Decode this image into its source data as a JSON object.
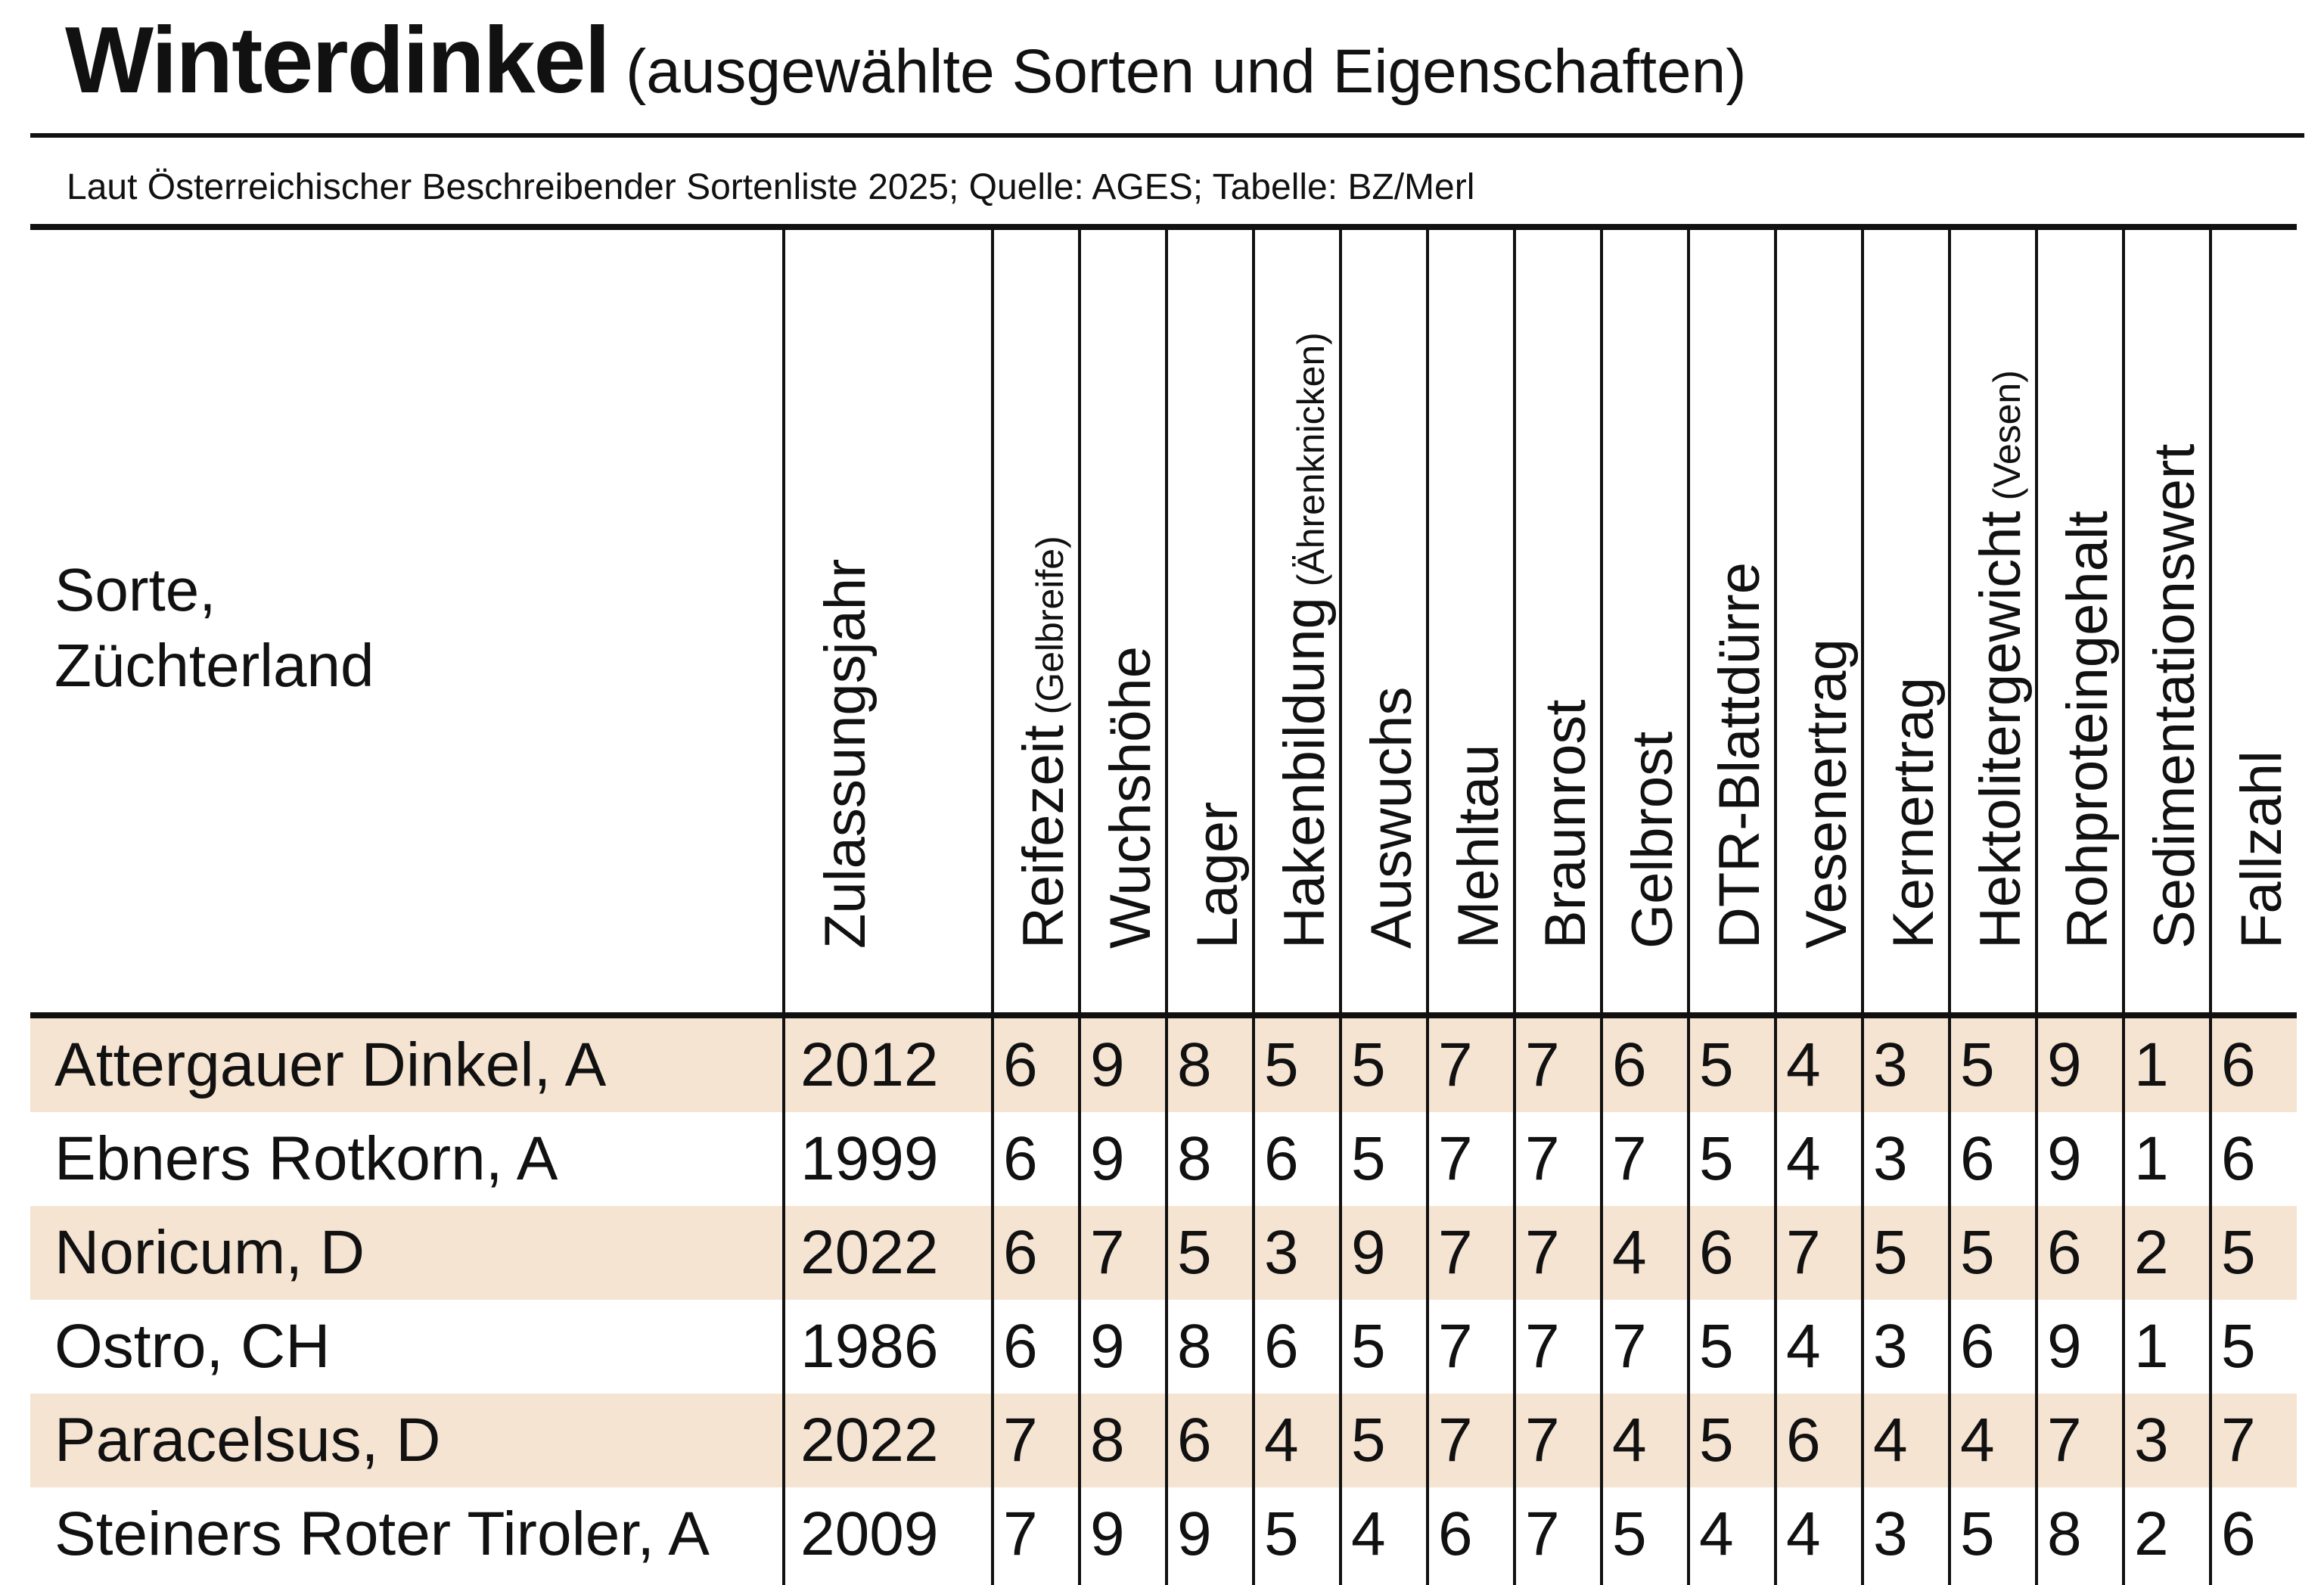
{
  "title": "Winterdinkel",
  "subtitle": "(ausgewählte Sorten und Eigenschaften)",
  "source": "Laut Österreichischer Beschreibender Sortenliste 2025; Quelle: AGES; Tabelle: BZ/Merl",
  "chart_data": {
    "type": "table",
    "row_header": [
      "Sorte,",
      "Züchterland"
    ],
    "columns": [
      {
        "label": "Zulassungsjahr",
        "note": ""
      },
      {
        "label": "Reifezeit",
        "note": "(Gelbreife)"
      },
      {
        "label": "Wuchshöhe",
        "note": ""
      },
      {
        "label": "Lager",
        "note": ""
      },
      {
        "label": "Hakenbildung",
        "note": "(Ährenknicken)"
      },
      {
        "label": "Auswuchs",
        "note": ""
      },
      {
        "label": "Mehltau",
        "note": ""
      },
      {
        "label": "Braunrost",
        "note": ""
      },
      {
        "label": "Gelbrost",
        "note": ""
      },
      {
        "label": "DTR-Blattdürre",
        "note": ""
      },
      {
        "label": "Vesenertrag",
        "note": ""
      },
      {
        "label": "Kernertrag",
        "note": ""
      },
      {
        "label": "Hektolitergewicht",
        "note": "(Vesen)"
      },
      {
        "label": "Rohproteingehalt",
        "note": ""
      },
      {
        "label": "Sedimentationswert",
        "note": ""
      },
      {
        "label": "Fallzahl",
        "note": ""
      }
    ],
    "rows": [
      {
        "name": "Attergauer Dinkel, A",
        "values": [
          "2012",
          "6",
          "9",
          "8",
          "5",
          "5",
          "7",
          "7",
          "6",
          "5",
          "4",
          "3",
          "5",
          "9",
          "1",
          "6"
        ]
      },
      {
        "name": "Ebners Rotkorn, A",
        "values": [
          "1999",
          "6",
          "9",
          "8",
          "6",
          "5",
          "7",
          "7",
          "7",
          "5",
          "4",
          "3",
          "6",
          "9",
          "1",
          "6"
        ]
      },
      {
        "name": "Noricum, D",
        "values": [
          "2022",
          "6",
          "7",
          "5",
          "3",
          "9",
          "7",
          "7",
          "4",
          "6",
          "7",
          "5",
          "5",
          "6",
          "2",
          "5"
        ]
      },
      {
        "name": "Ostro, CH",
        "values": [
          "1986",
          "6",
          "9",
          "8",
          "6",
          "5",
          "7",
          "7",
          "7",
          "5",
          "4",
          "3",
          "6",
          "9",
          "1",
          "5"
        ]
      },
      {
        "name": "Paracelsus, D",
        "values": [
          "2022",
          "7",
          "8",
          "6",
          "4",
          "5",
          "7",
          "7",
          "4",
          "5",
          "6",
          "4",
          "4",
          "7",
          "3",
          "7"
        ]
      },
      {
        "name": "Steiners Roter Tiroler, A",
        "values": [
          "2009",
          "7",
          "9",
          "9",
          "5",
          "4",
          "6",
          "7",
          "5",
          "4",
          "4",
          "3",
          "5",
          "8",
          "2",
          "6"
        ]
      }
    ],
    "colors": {
      "row_shading": "#f6e4d2",
      "rules": "#111111",
      "background": "#ffffff"
    }
  }
}
